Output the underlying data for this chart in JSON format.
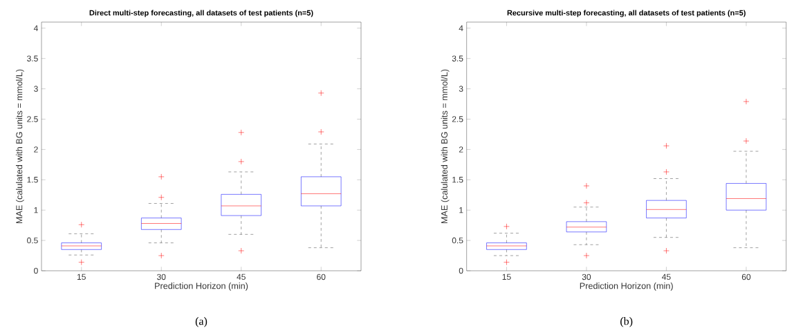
{
  "chart_data": [
    {
      "type": "box",
      "title": "Direct multi-step forecasting, all datasets of test patients (n=5)",
      "xlabel": "Prediction Horizon (min)",
      "ylabel": "MAE (calulated with BG units = mmol/L)",
      "categories": [
        "15",
        "30",
        "45",
        "60"
      ],
      "color": "#0000ff",
      "marker": "cross",
      "ylim": [
        0,
        4.1
      ],
      "yticks": [
        0,
        0.5,
        1,
        1.5,
        2,
        2.5,
        3,
        3.5,
        4
      ],
      "annotations": [
        "(a)"
      ],
      "boxes": [
        {
          "low": 0.26,
          "q1": 0.35,
          "median": 0.41,
          "q3": 0.46,
          "high": 0.61,
          "outliers": [
            0.76,
            0.14
          ]
        },
        {
          "low": 0.46,
          "q1": 0.68,
          "median": 0.78,
          "q3": 0.87,
          "high": 1.11,
          "outliers": [
            1.55,
            1.21,
            0.25
          ]
        },
        {
          "low": 0.6,
          "q1": 0.91,
          "median": 1.07,
          "q3": 1.26,
          "high": 1.63,
          "outliers": [
            2.28,
            1.8,
            0.33
          ]
        },
        {
          "low": 0.38,
          "q1": 1.07,
          "median": 1.27,
          "q3": 1.55,
          "high": 2.09,
          "outliers": [
            2.93,
            2.29
          ]
        }
      ]
    },
    {
      "type": "box",
      "title": "Recursive multi-step forecasting, all datasets of test patients (n=5)",
      "xlabel": "Prediction Horizon (min)",
      "ylabel": "MAE (calulated with BG units = mmol/L)",
      "categories": [
        "15",
        "30",
        "45",
        "60"
      ],
      "color": "#0000ff",
      "marker": "cross",
      "ylim": [
        0,
        4.1
      ],
      "yticks": [
        0,
        0.5,
        1,
        1.5,
        2,
        2.5,
        3,
        3.5,
        4
      ],
      "annotations": [
        "(b)"
      ],
      "boxes": [
        {
          "low": 0.25,
          "q1": 0.35,
          "median": 0.41,
          "q3": 0.46,
          "high": 0.62,
          "outliers": [
            0.73,
            0.14
          ]
        },
        {
          "low": 0.43,
          "q1": 0.64,
          "median": 0.72,
          "q3": 0.81,
          "high": 1.05,
          "outliers": [
            1.4,
            1.12,
            0.25
          ]
        },
        {
          "low": 0.55,
          "q1": 0.87,
          "median": 1.01,
          "q3": 1.16,
          "high": 1.52,
          "outliers": [
            2.06,
            1.63,
            0.33
          ]
        },
        {
          "low": 0.38,
          "q1": 1.0,
          "median": 1.19,
          "q3": 1.44,
          "high": 1.97,
          "outliers": [
            2.79,
            2.14
          ]
        }
      ]
    }
  ]
}
